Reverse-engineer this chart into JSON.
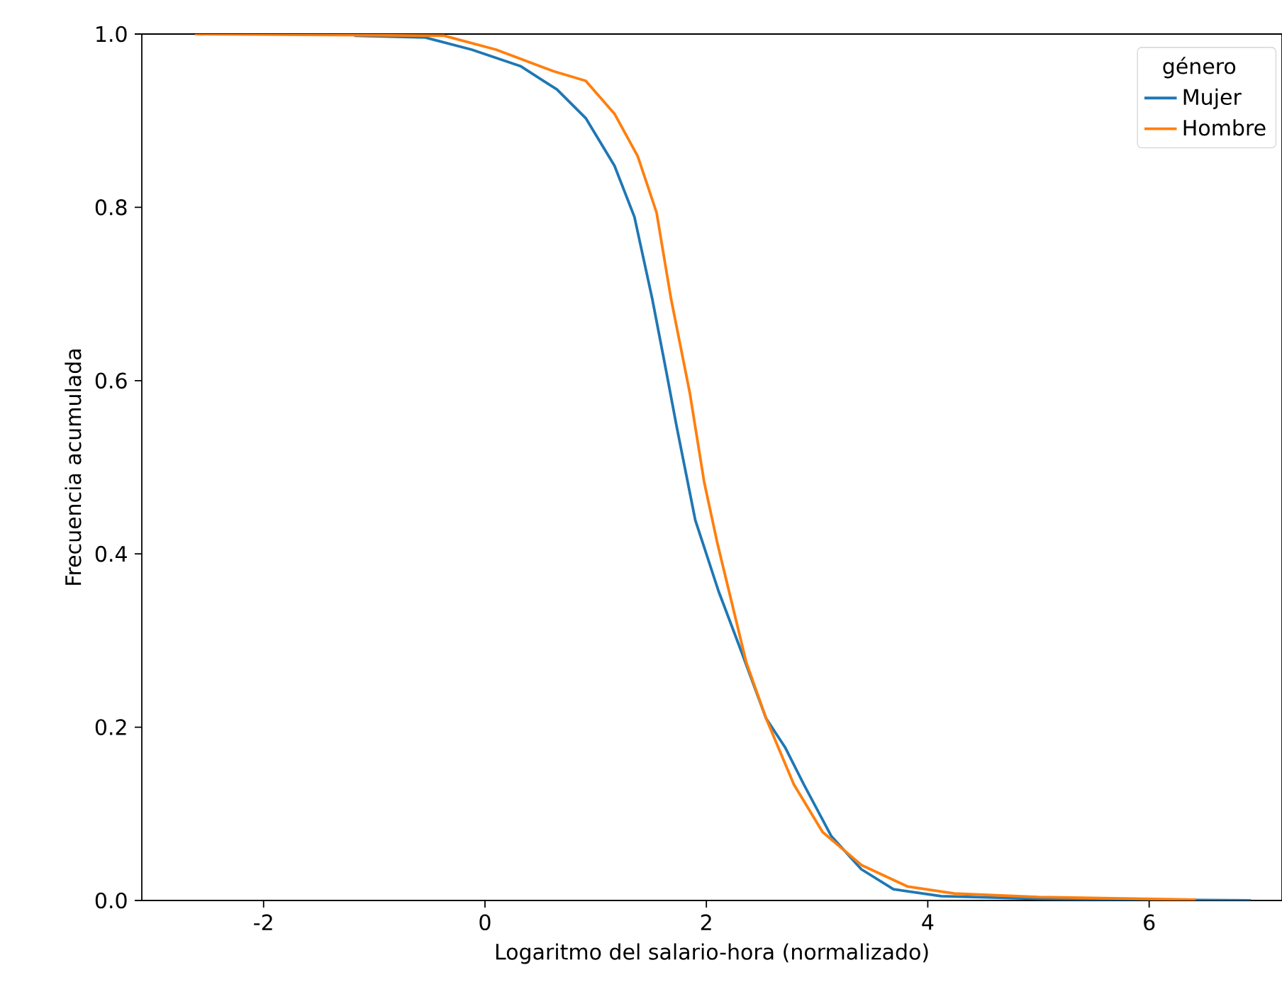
{
  "chart_data": {
    "type": "line",
    "xlabel": "Logaritmo del salario-hora (normalizado)",
    "ylabel": "Frecuencia acumulada",
    "legend_title": "género",
    "legend": "top right",
    "grid": false,
    "line_style": "solid",
    "xlim": [
      -3.1,
      7.2
    ],
    "ylim": [
      0,
      1
    ],
    "xticks": [
      -2,
      0,
      2,
      4,
      6
    ],
    "yticks": [
      {
        "value": 0,
        "label": "0.0"
      },
      {
        "value": 0.2,
        "label": "0.2"
      },
      {
        "value": 0.4,
        "label": "0.4"
      },
      {
        "value": 0.6,
        "label": "0.6"
      },
      {
        "value": 0.8,
        "label": "0.8"
      },
      {
        "value": 1,
        "label": "1.0"
      }
    ],
    "series": [
      {
        "name": "Mujer",
        "color": "#1f77b4",
        "x": [
          -1.18,
          -0.54,
          -0.12,
          0.32,
          0.65,
          0.91,
          1.17,
          1.35,
          1.51,
          1.64,
          1.73,
          1.9,
          2.11,
          2.32,
          2.54,
          2.71,
          2.88,
          3.13,
          3.4,
          3.69,
          4.12,
          5.0,
          6.0,
          6.92
        ],
        "values": [
          0.998,
          0.996,
          0.982,
          0.963,
          0.936,
          0.903,
          0.848,
          0.789,
          0.695,
          0.609,
          0.548,
          0.439,
          0.357,
          0.286,
          0.21,
          0.177,
          0.134,
          0.074,
          0.036,
          0.013,
          0.005,
          0.002,
          0.001,
          0.0
        ]
      },
      {
        "name": "Hombre",
        "color": "#ff7f0e",
        "x": [
          -2.62,
          -0.37,
          0.1,
          0.62,
          0.91,
          1.17,
          1.38,
          1.55,
          1.68,
          1.85,
          1.98,
          2.1,
          2.36,
          2.54,
          2.79,
          3.05,
          3.4,
          3.82,
          4.24,
          5.0,
          6.42
        ],
        "values": [
          1.0,
          0.998,
          0.982,
          0.957,
          0.946,
          0.908,
          0.859,
          0.794,
          0.695,
          0.586,
          0.483,
          0.412,
          0.275,
          0.21,
          0.134,
          0.079,
          0.041,
          0.016,
          0.008,
          0.004,
          0.001
        ]
      }
    ]
  }
}
